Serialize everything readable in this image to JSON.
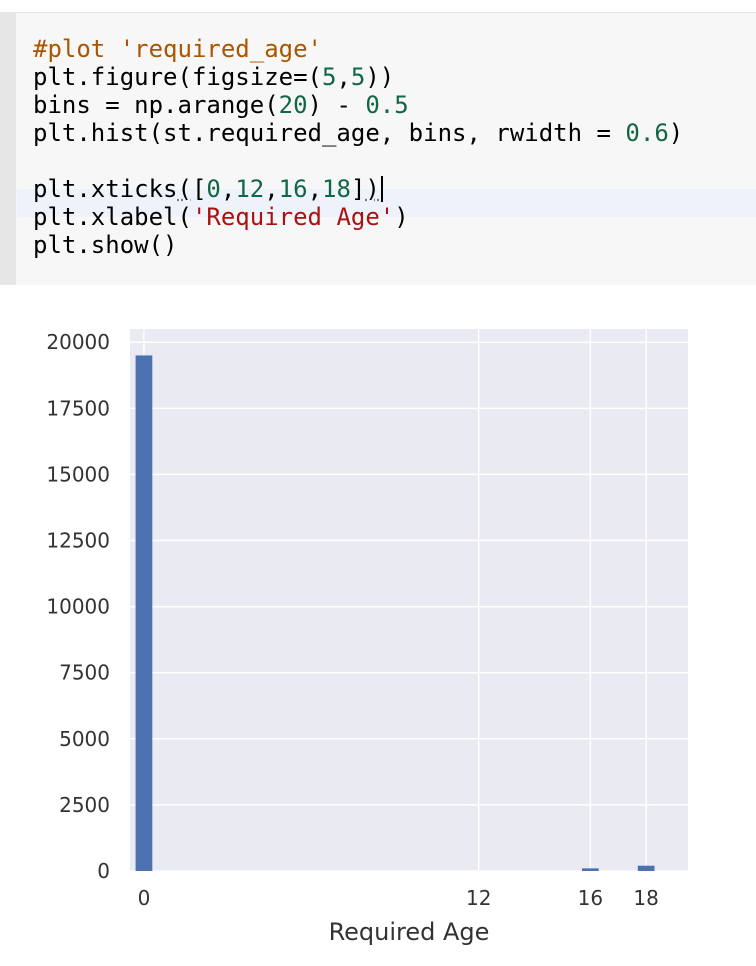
{
  "code_cell": {
    "lines": [
      {
        "tokens": [
          {
            "text": "#plot 'required_age'",
            "cls": "cm-comment"
          }
        ]
      },
      {
        "tokens": [
          {
            "text": "plt.figure(figsize=(",
            "cls": "cm-plain"
          },
          {
            "text": "5",
            "cls": "cm-number"
          },
          {
            "text": ",",
            "cls": "cm-plain"
          },
          {
            "text": "5",
            "cls": "cm-number"
          },
          {
            "text": "))",
            "cls": "cm-plain"
          }
        ]
      },
      {
        "tokens": [
          {
            "text": "bins = np.arange(",
            "cls": "cm-plain"
          },
          {
            "text": "20",
            "cls": "cm-number"
          },
          {
            "text": ") - ",
            "cls": "cm-plain"
          },
          {
            "text": "0.5",
            "cls": "cm-number"
          }
        ]
      },
      {
        "tokens": [
          {
            "text": "plt.hist(st.required_age, bins, rwidth = ",
            "cls": "cm-plain"
          },
          {
            "text": "0.6",
            "cls": "cm-number"
          },
          {
            "text": ")",
            "cls": "cm-plain"
          }
        ]
      },
      {
        "tokens": []
      },
      {
        "tokens": [
          {
            "text": "plt.xticks",
            "cls": "cm-plain"
          },
          {
            "text": "(",
            "cls": "cm-plain bracket-mark"
          },
          {
            "text": "[",
            "cls": "cm-plain"
          },
          {
            "text": "0",
            "cls": "cm-number"
          },
          {
            "text": ",",
            "cls": "cm-plain"
          },
          {
            "text": "12",
            "cls": "cm-number"
          },
          {
            "text": ",",
            "cls": "cm-plain"
          },
          {
            "text": "16",
            "cls": "cm-number"
          },
          {
            "text": ",",
            "cls": "cm-plain"
          },
          {
            "text": "18",
            "cls": "cm-number"
          },
          {
            "text": "]",
            "cls": "cm-plain"
          },
          {
            "text": ")",
            "cls": "cm-plain bracket-mark"
          }
        ],
        "cursor": true
      },
      {
        "tokens": [
          {
            "text": "plt.xlabel(",
            "cls": "cm-plain"
          },
          {
            "text": "'Required Age'",
            "cls": "cm-string"
          },
          {
            "text": ")",
            "cls": "cm-plain"
          }
        ]
      },
      {
        "tokens": [
          {
            "text": "plt.show()",
            "cls": "cm-plain"
          }
        ]
      }
    ]
  },
  "chart_data": {
    "type": "bar",
    "title": "",
    "xlabel": "Required Age",
    "ylabel": "",
    "xlim": [
      -0.5,
      19.5
    ],
    "ylim": [
      0,
      20500
    ],
    "xticks": [
      0,
      12,
      16,
      18
    ],
    "yticks": [
      0,
      2500,
      5000,
      7500,
      10000,
      12500,
      15000,
      17500,
      20000
    ],
    "bin_edges_start": -0.5,
    "bin_width": 1,
    "rwidth": 0.6,
    "x": [
      0,
      16,
      18
    ],
    "values": [
      19500,
      100,
      200
    ],
    "grid": true,
    "colors": {
      "bar": "#4c72b0",
      "background": "#eaeaf2",
      "grid": "#ffffff"
    }
  }
}
